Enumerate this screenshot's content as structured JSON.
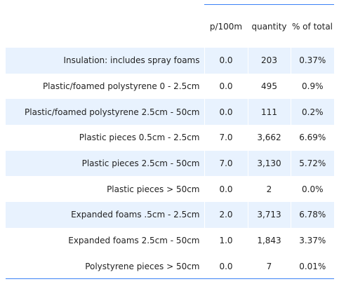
{
  "table": {
    "headers": {
      "label": "",
      "per_100m": "p/100m",
      "quantity": "quantity",
      "percent": "% of total"
    },
    "rows": [
      {
        "label": "Insulation: includes spray foams",
        "per_100m": "0.0",
        "quantity": "203",
        "percent": "0.37%"
      },
      {
        "label": "Plastic/foamed polystyrene 0 - 2.5cm",
        "per_100m": "0.0",
        "quantity": "495",
        "percent": "0.9%"
      },
      {
        "label": "Plastic/foamed polystyrene 2.5cm - 50cm",
        "per_100m": "0.0",
        "quantity": "111",
        "percent": "0.2%"
      },
      {
        "label": "Plastic pieces 0.5cm - 2.5cm",
        "per_100m": "7.0",
        "quantity": "3,662",
        "percent": "6.69%"
      },
      {
        "label": "Plastic pieces 2.5cm - 50cm",
        "per_100m": "7.0",
        "quantity": "3,130",
        "percent": "5.72%"
      },
      {
        "label": "Plastic pieces > 50cm",
        "per_100m": "0.0",
        "quantity": "2",
        "percent": "0.0%"
      },
      {
        "label": "Expanded foams .5cm - 2.5cm",
        "per_100m": "2.0",
        "quantity": "3,713",
        "percent": "6.78%"
      },
      {
        "label": "Expanded foams 2.5cm - 50cm",
        "per_100m": "1.0",
        "quantity": "1,843",
        "percent": "3.37%"
      },
      {
        "label": "Polystyrene pieces > 50cm",
        "per_100m": "0.0",
        "quantity": "7",
        "percent": "0.01%"
      }
    ]
  },
  "colors": {
    "rule": "#3b82f6",
    "row_shade": "#e8f2fe",
    "text": "#222222"
  }
}
